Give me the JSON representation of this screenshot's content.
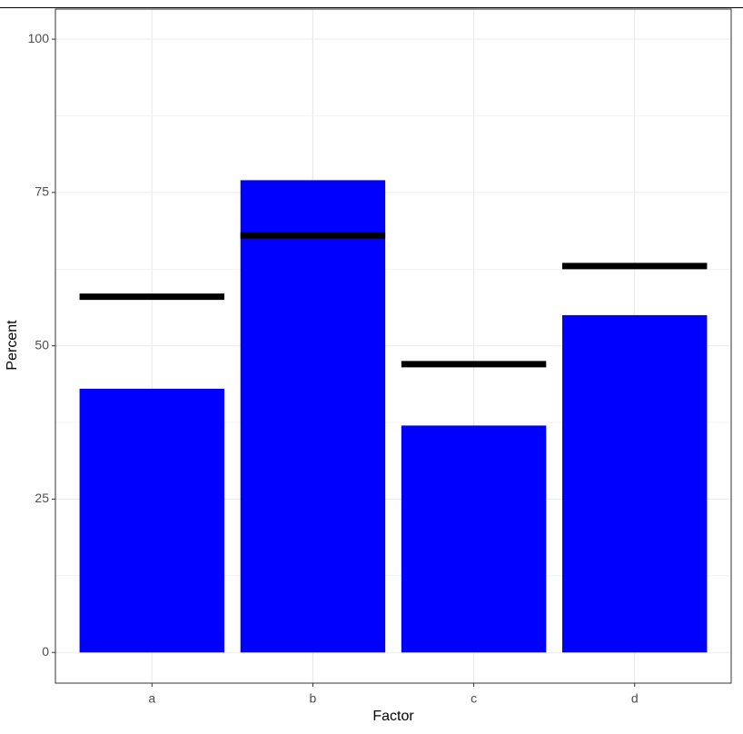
{
  "chart_data": {
    "type": "bar",
    "x_label": "Factor",
    "y_label": "Percent",
    "categories": [
      "a",
      "b",
      "c",
      "d"
    ],
    "series": [
      {
        "color": "#0000ff",
        "values": [
          43,
          77,
          37,
          55
        ]
      },
      {
        "color": "#000000",
        "values": [
          58,
          68,
          47,
          63
        ],
        "mark": "segment"
      }
    ],
    "ylim": [
      -5,
      104.9
    ],
    "yticks": [
      0,
      25,
      50,
      75,
      100
    ],
    "minor_yticks": [
      12.5,
      37.5,
      62.5,
      87.5
    ],
    "grid": true
  }
}
